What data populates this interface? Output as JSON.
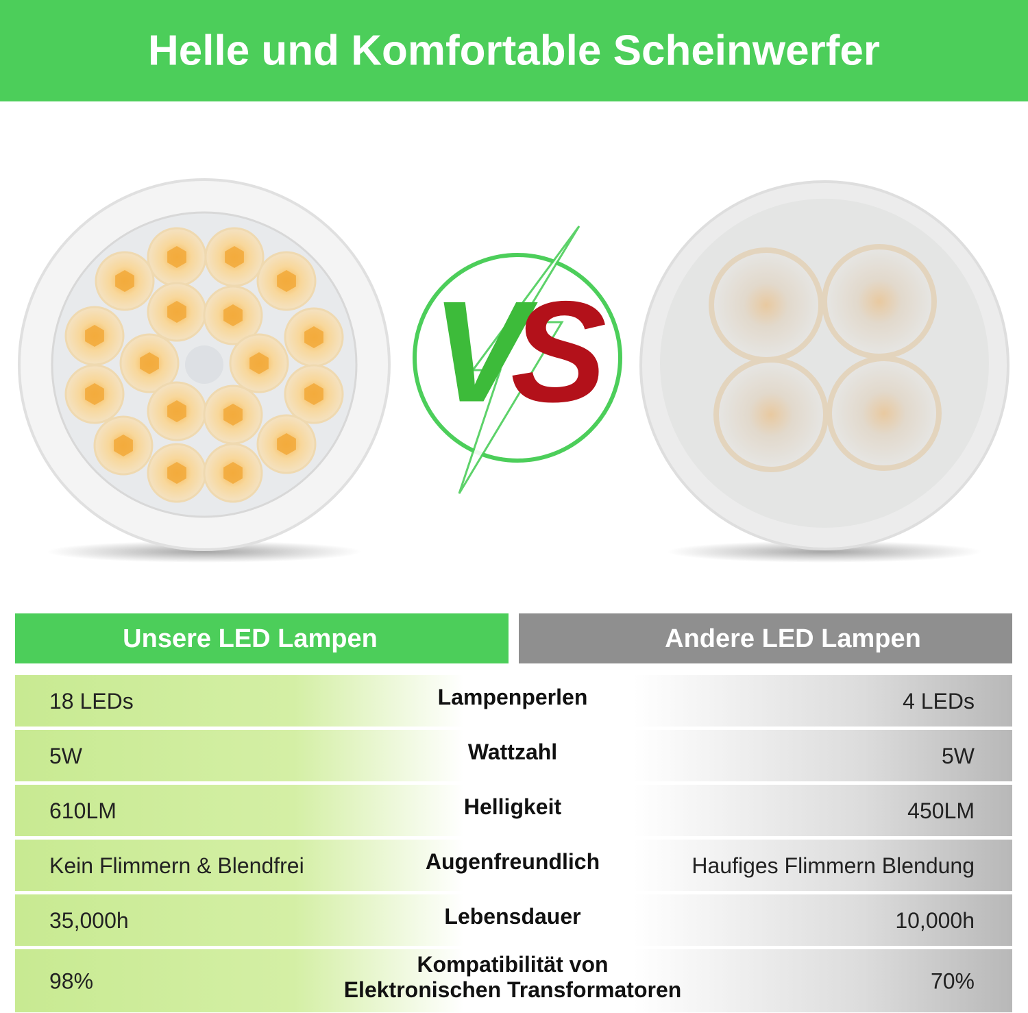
{
  "header": {
    "title": "Helle und Komfortable Scheinwerfer"
  },
  "vs_letters": [
    "V",
    "S"
  ],
  "table": {
    "headers": [
      "Unsere LED Lampen",
      "Andere LED Lampen"
    ],
    "rows": [
      {
        "left": "18 LEDs",
        "label_lines": [
          "Lampenperlen"
        ],
        "right": "4 LEDs"
      },
      {
        "left": "5W",
        "label_lines": [
          "Wattzahl"
        ],
        "right": "5W"
      },
      {
        "left": "610LM",
        "label_lines": [
          "Helligkeit"
        ],
        "right": "450LM"
      },
      {
        "left": "Kein Flimmern & Blendfrei",
        "label_lines": [
          "Augenfreundlich"
        ],
        "right": "Haufiges Flimmern Blendung"
      },
      {
        "left": "35,000h",
        "label_lines": [
          "Lebensdauer"
        ],
        "right": "10,000h"
      },
      {
        "left": "98%",
        "label_lines": [
          "Kompatibilität von",
          "Elektronischen Transformatoren"
        ],
        "right": "70%"
      }
    ]
  }
}
